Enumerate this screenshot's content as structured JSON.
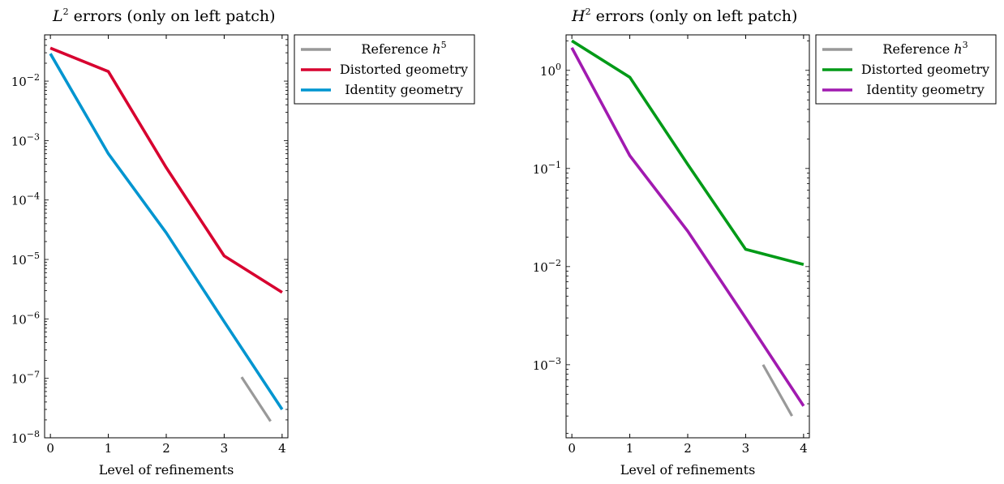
{
  "chart_data": [
    {
      "type": "line",
      "title": "errors (only on left patch)",
      "title_math": {
        "base": "L",
        "sup": "2"
      },
      "xlabel": "Level of refinements",
      "ylabel": "",
      "xscale": "linear",
      "yscale": "log",
      "xlim": [
        -0.1,
        4.1
      ],
      "ylim": [
        1e-08,
        0.06
      ],
      "xticks": [
        "0",
        "1",
        "2",
        "3",
        "4"
      ],
      "yticks": [
        {
          "value": 1e-08,
          "base": "10",
          "exp": "−8"
        },
        {
          "value": 1e-07,
          "base": "10",
          "exp": "−7"
        },
        {
          "value": 1e-06,
          "base": "10",
          "exp": "−6"
        },
        {
          "value": 1e-05,
          "base": "10",
          "exp": "−5"
        },
        {
          "value": 0.0001,
          "base": "10",
          "exp": "−4"
        },
        {
          "value": 0.001,
          "base": "10",
          "exp": "−3"
        },
        {
          "value": 0.01,
          "base": "10",
          "exp": "−2"
        }
      ],
      "grid": false,
      "legend_position": "outside-top-right",
      "series": [
        {
          "name": "Reference",
          "name_math": {
            "base": "h",
            "sup": "5"
          },
          "color": "#999999",
          "x": [
            3.3,
            3.8
          ],
          "y": [
            1.05e-07,
            1.9e-08
          ]
        },
        {
          "name": "Distorted geometry",
          "color": "#d7002f",
          "x": [
            0,
            1,
            2,
            3,
            4
          ],
          "y": [
            0.036,
            0.0145,
            0.00035,
            1.15e-05,
            2.8e-06
          ]
        },
        {
          "name": "Identity geometry",
          "color": "#0095d0",
          "x": [
            0,
            1,
            2,
            3,
            4
          ],
          "y": [
            0.029,
            0.0006,
            2.8e-05,
            9e-07,
            3e-08
          ]
        }
      ]
    },
    {
      "type": "line",
      "title": "errors (only on left patch)",
      "title_math": {
        "base": "H",
        "sup": "2"
      },
      "xlabel": "Level of refinements",
      "ylabel": "",
      "xscale": "linear",
      "yscale": "log",
      "xlim": [
        -0.1,
        4.1
      ],
      "ylim": [
        0.00018,
        2.3
      ],
      "xticks": [
        "0",
        "1",
        "2",
        "3",
        "4"
      ],
      "yticks": [
        {
          "value": 0.001,
          "base": "10",
          "exp": "−3"
        },
        {
          "value": 0.01,
          "base": "10",
          "exp": "−2"
        },
        {
          "value": 0.1,
          "base": "10",
          "exp": "−1"
        },
        {
          "value": 1,
          "base": "10",
          "exp": "0"
        }
      ],
      "grid": false,
      "legend_position": "outside-top-right",
      "series": [
        {
          "name": "Reference",
          "name_math": {
            "base": "h",
            "sup": "3"
          },
          "color": "#999999",
          "x": [
            3.3,
            3.8
          ],
          "y": [
            0.001,
            0.0003
          ]
        },
        {
          "name": "Distorted geometry",
          "color": "#009a17",
          "x": [
            0,
            1,
            2,
            3,
            4
          ],
          "y": [
            2.0,
            0.85,
            0.11,
            0.015,
            0.0105
          ]
        },
        {
          "name": "Identity geometry",
          "color": "#a11ab0",
          "x": [
            0,
            1,
            2,
            3,
            4
          ],
          "y": [
            1.7,
            0.135,
            0.023,
            0.003,
            0.00038
          ]
        }
      ]
    }
  ]
}
